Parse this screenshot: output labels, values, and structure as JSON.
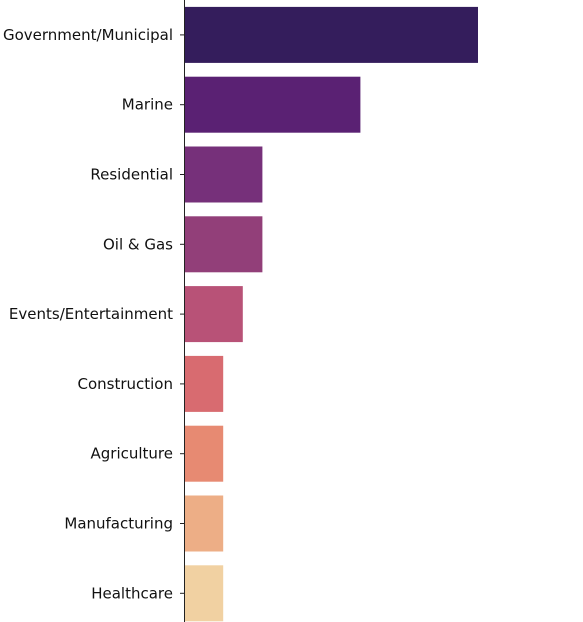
{
  "chart_data": {
    "type": "bar",
    "orientation": "horizontal",
    "categories": [
      "Government/Municipal",
      "Marine",
      "Residential",
      "Oil & Gas",
      "Events/Entertainment",
      "Construction",
      "Agriculture",
      "Manufacturing",
      "Healthcare"
    ],
    "values": [
      15,
      9,
      4,
      4,
      3,
      2,
      2,
      2,
      2
    ],
    "xlim": [
      0,
      20
    ],
    "title": "",
    "xlabel": "",
    "ylabel": "",
    "grid": false,
    "colors": [
      "#341d5c",
      "#5a2173",
      "#76307a",
      "#923f79",
      "#b85277",
      "#d86b70",
      "#e78a72",
      "#edae86",
      "#f1d1a2"
    ]
  }
}
